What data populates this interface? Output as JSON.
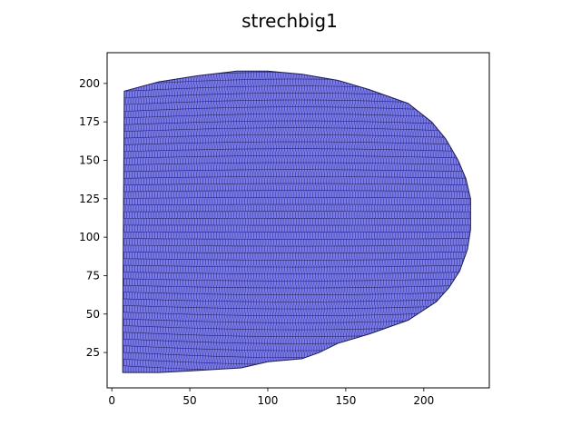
{
  "chart_data": {
    "type": "mesh",
    "title": "strechbig1",
    "xlabel": "",
    "ylabel": "",
    "xlim": [
      -3,
      242
    ],
    "ylim": [
      2,
      220
    ],
    "x_ticks": [
      0,
      50,
      100,
      150,
      200
    ],
    "y_ticks": [
      25,
      50,
      75,
      100,
      125,
      150,
      175,
      200
    ],
    "grid": false,
    "legend": "none",
    "mesh_fill_color": "#7b7bf0",
    "mesh_edge_color": "#1c1c52",
    "boundary": [
      [
        8,
        195
      ],
      [
        30,
        201
      ],
      [
        55,
        205
      ],
      [
        80,
        208
      ],
      [
        100,
        208
      ],
      [
        122,
        206
      ],
      [
        145,
        202
      ],
      [
        165,
        196
      ],
      [
        190,
        187
      ],
      [
        205,
        175
      ],
      [
        214,
        164
      ],
      [
        222,
        150
      ],
      [
        227,
        138
      ],
      [
        230,
        125
      ],
      [
        230,
        105
      ],
      [
        228,
        92
      ],
      [
        223,
        78
      ],
      [
        216,
        67
      ],
      [
        208,
        58
      ],
      [
        190,
        46
      ],
      [
        165,
        37
      ],
      [
        145,
        31
      ],
      [
        133,
        25
      ],
      [
        122,
        21
      ],
      [
        100,
        19
      ],
      [
        83,
        15
      ],
      [
        50,
        13
      ],
      [
        30,
        12
      ],
      [
        7,
        12
      ],
      [
        7,
        40
      ],
      [
        8,
        195
      ]
    ],
    "mesh_rows": 45,
    "mesh_cols": 130
  }
}
